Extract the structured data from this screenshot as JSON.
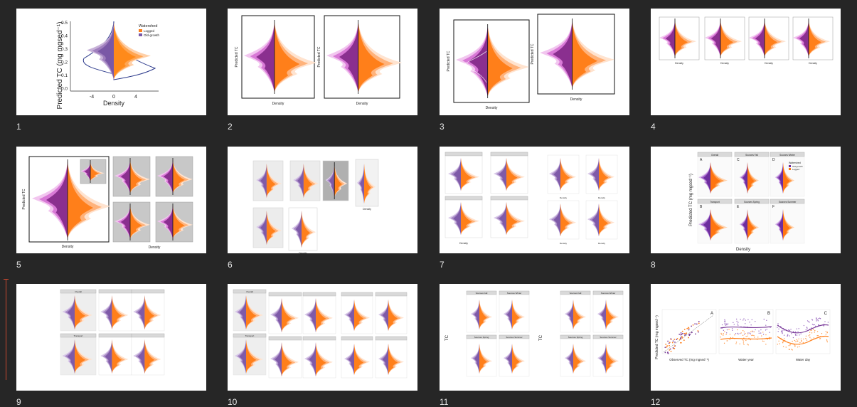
{
  "colors": {
    "background": "#262626",
    "slide": "#ffffff",
    "purple": "#7b2d8e",
    "magenta": "#c04fc4",
    "orange": "#ff7f1a",
    "peach": "#ffc9a3",
    "panel_gray": "#c8c8c8",
    "cursor": "#c8472f"
  },
  "slides": [
    {
      "number": "1",
      "texts": {
        "ylabel": "Predicted TC (mg mgsed⁻¹)",
        "xlabel": "Density",
        "legend_title": "Watershed",
        "legend_a": "Logged",
        "legend_b": "Old-growth",
        "y_ticks": [
          "0.5",
          "0.4",
          "0.3",
          "0.2",
          "0.1",
          "0.0"
        ],
        "x_ticks": [
          "-4",
          "0",
          "4"
        ]
      }
    },
    {
      "number": "2",
      "texts": {
        "ylabel": "Predicted TC",
        "xlabel": "Density"
      }
    },
    {
      "number": "3",
      "texts": {
        "ylabel": "Predicted TC",
        "xlabel": "Density"
      }
    },
    {
      "number": "4",
      "texts": {
        "xlabel": "Density"
      }
    },
    {
      "number": "5",
      "texts": {
        "ylabel": "Predicted TC",
        "xlabel": "Density"
      }
    },
    {
      "number": "6",
      "texts": {
        "xlabel": "Density"
      }
    },
    {
      "number": "7",
      "texts": {
        "xlabel": "Density"
      }
    },
    {
      "number": "8",
      "texts": {
        "ylabel": "Predicted TC (mg mgsed⁻¹)",
        "xlabel": "Density",
        "strips": [
          "Overall",
          "Sources Fall",
          "Sources Winter",
          "Transport",
          "Sources Spring",
          "Sources Summer"
        ],
        "letters": [
          "A",
          "C",
          "D",
          "B",
          "E",
          "F"
        ],
        "legend_title": "Watershed",
        "legend_a": "Old-growth",
        "legend_b": "Logged"
      }
    },
    {
      "number": "9",
      "texts": {
        "strips": [
          "Overall",
          "",
          "",
          "Transport",
          "",
          ""
        ]
      }
    },
    {
      "number": "10",
      "texts": {
        "strips": [
          "Overall",
          "",
          "",
          "Transport",
          "",
          ""
        ]
      }
    },
    {
      "number": "11",
      "texts": {
        "ylabel": "TC",
        "strips": [
          "Sources Fall",
          "Sources Winter",
          "Sources Spring",
          "Sources Summer"
        ]
      }
    },
    {
      "number": "12",
      "texts": {
        "ylabel": "Predicted TC (mg mgsed⁻¹)",
        "xlabel_a": "Observed TC (mg mgsed⁻¹)",
        "xlabel_b": "Water year",
        "xlabel_c": "Water day",
        "letters": [
          "A",
          "B",
          "C"
        ]
      }
    }
  ]
}
